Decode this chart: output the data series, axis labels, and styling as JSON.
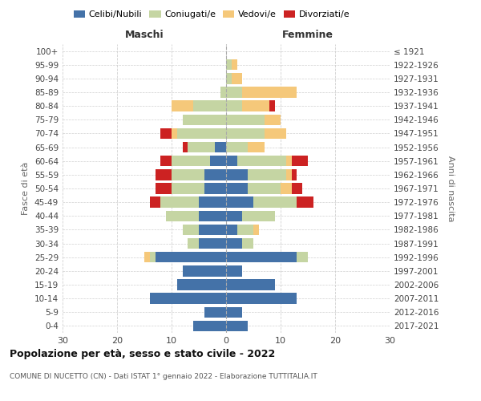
{
  "age_groups": [
    "0-4",
    "5-9",
    "10-14",
    "15-19",
    "20-24",
    "25-29",
    "30-34",
    "35-39",
    "40-44",
    "45-49",
    "50-54",
    "55-59",
    "60-64",
    "65-69",
    "70-74",
    "75-79",
    "80-84",
    "85-89",
    "90-94",
    "95-99",
    "100+"
  ],
  "birth_years": [
    "2017-2021",
    "2012-2016",
    "2007-2011",
    "2002-2006",
    "1997-2001",
    "1992-1996",
    "1987-1991",
    "1982-1986",
    "1977-1981",
    "1972-1976",
    "1967-1971",
    "1962-1966",
    "1957-1961",
    "1952-1956",
    "1947-1951",
    "1942-1946",
    "1937-1941",
    "1932-1936",
    "1927-1931",
    "1922-1926",
    "≤ 1921"
  ],
  "male": {
    "celibi": [
      6,
      4,
      14,
      9,
      8,
      13,
      5,
      5,
      5,
      5,
      4,
      4,
      3,
      2,
      0,
      0,
      0,
      0,
      0,
      0,
      0
    ],
    "coniugati": [
      0,
      0,
      0,
      0,
      0,
      1,
      2,
      3,
      6,
      7,
      6,
      6,
      7,
      5,
      9,
      8,
      6,
      1,
      0,
      0,
      0
    ],
    "vedovi": [
      0,
      0,
      0,
      0,
      0,
      1,
      0,
      0,
      0,
      0,
      0,
      0,
      0,
      0,
      1,
      0,
      4,
      0,
      0,
      0,
      0
    ],
    "divorziati": [
      0,
      0,
      0,
      0,
      0,
      0,
      0,
      0,
      0,
      2,
      3,
      3,
      2,
      1,
      2,
      0,
      0,
      0,
      0,
      0,
      0
    ]
  },
  "female": {
    "nubili": [
      4,
      3,
      13,
      9,
      3,
      13,
      3,
      2,
      3,
      5,
      4,
      4,
      2,
      0,
      0,
      0,
      0,
      0,
      0,
      0,
      0
    ],
    "coniugate": [
      0,
      0,
      0,
      0,
      0,
      2,
      2,
      3,
      6,
      8,
      6,
      7,
      9,
      4,
      7,
      7,
      3,
      3,
      1,
      1,
      0
    ],
    "vedove": [
      0,
      0,
      0,
      0,
      0,
      0,
      0,
      1,
      0,
      0,
      2,
      1,
      1,
      3,
      4,
      3,
      5,
      10,
      2,
      1,
      0
    ],
    "divorziate": [
      0,
      0,
      0,
      0,
      0,
      0,
      0,
      0,
      0,
      3,
      2,
      1,
      3,
      0,
      0,
      0,
      1,
      0,
      0,
      0,
      0
    ]
  },
  "colors": {
    "celibi": "#4472a8",
    "coniugati": "#c5d5a3",
    "vedovi": "#f5c87a",
    "divorziati": "#cc2222"
  },
  "title": "Popolazione per età, sesso e stato civile - 2022",
  "subtitle": "COMUNE DI NUCETTO (CN) - Dati ISTAT 1° gennaio 2022 - Elaborazione TUTTITALIA.IT",
  "xlabel_left": "Maschi",
  "xlabel_right": "Femmine",
  "ylabel_left": "Fasce di età",
  "ylabel_right": "Anni di nascita",
  "xlim": 30,
  "legend_labels": [
    "Celibi/Nubili",
    "Coniugati/e",
    "Vedovi/e",
    "Divorziati/e"
  ],
  "background_color": "#ffffff",
  "grid_color": "#cccccc"
}
